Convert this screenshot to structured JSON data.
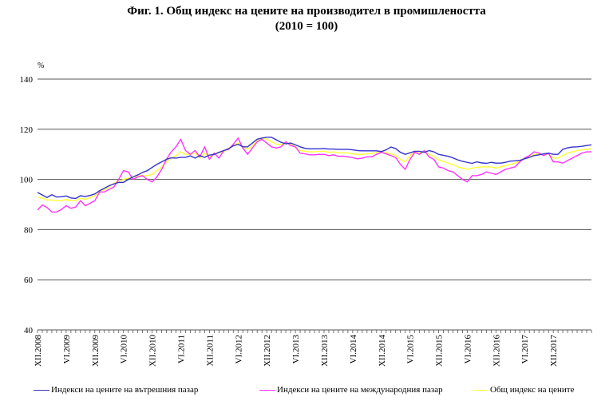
{
  "title_line1": "Фиг. 1. Общ индекс на цените на производител в промишлеността",
  "title_line2": "(2010 = 100)",
  "chart_data": {
    "type": "line",
    "title": "Фиг. 1. Общ индекс на цените на производител в промишлеността (2010 = 100)",
    "ylabel": "%",
    "ylim": [
      40,
      140
    ],
    "yticks": [
      40,
      60,
      80,
      100,
      120,
      140
    ],
    "grid": true,
    "legend_position": "bottom",
    "x_start": "XII.2008",
    "x_end": "XII.2017",
    "x_tick_labels": [
      "XII.2008",
      "VI.2009",
      "XII.2009",
      "VI.2010",
      "XII.2010",
      "VI.2011",
      "XII.2011",
      "VI.2012",
      "XII.2012",
      "VI.2013",
      "XII.2013",
      "VI.2014",
      "XII.2014",
      "VI.2015",
      "XII.2015",
      "VI.2016",
      "XII.2016",
      "VI.2017",
      "XII.2017"
    ],
    "series": [
      {
        "name": "Индекси на цените на вътрешния пазар",
        "color": "#3333cc",
        "values": [
          94.8,
          93.8,
          92.8,
          93.9,
          93.0,
          93.1,
          93.4,
          92.6,
          92.4,
          93.5,
          93.2,
          93.6,
          94.2,
          95.5,
          96.5,
          97.5,
          98.2,
          98.8,
          98.8,
          100.0,
          101.0,
          101.8,
          102.8,
          103.5,
          104.8,
          106.0,
          107.0,
          108.0,
          108.6,
          108.5,
          108.8,
          108.8,
          109.4,
          108.5,
          109.5,
          108.8,
          109.7,
          110.0,
          110.8,
          111.5,
          112.2,
          113.4,
          114.0,
          113.0,
          113.0,
          114.5,
          116.0,
          116.5,
          116.8,
          116.8,
          115.8,
          114.8,
          114.2,
          114.5,
          113.8,
          113.0,
          112.4,
          112.2,
          112.2,
          112.2,
          112.3,
          112.1,
          112.1,
          112.0,
          112.0,
          112.0,
          111.8,
          111.5,
          111.4,
          111.4,
          111.4,
          111.4,
          111.1,
          111.8,
          112.9,
          112.3,
          110.8,
          110.0,
          110.6,
          111.2,
          111.2,
          110.8,
          111.5,
          111.0,
          110.0,
          109.6,
          109.2,
          108.6,
          107.8,
          107.2,
          106.8,
          106.4,
          107.0,
          106.6,
          106.4,
          106.8,
          106.5,
          106.5,
          106.8,
          107.3,
          107.4,
          107.6,
          108.2,
          108.8,
          109.5,
          109.8,
          110.2,
          110.5,
          110.0,
          110.0,
          112.0,
          112.6,
          112.9,
          113.0,
          113.2,
          113.5,
          113.8
        ]
      },
      {
        "name": "Индекси на цените на международния пазар",
        "color": "#ff33ff",
        "values": [
          87.8,
          89.8,
          88.8,
          87.0,
          87.0,
          88.0,
          89.5,
          88.5,
          89.0,
          91.5,
          89.5,
          90.5,
          91.5,
          95.0,
          95.0,
          96.0,
          97.0,
          100.0,
          103.5,
          103.0,
          100.0,
          101.0,
          101.5,
          100.0,
          99.0,
          101.0,
          104.0,
          108.0,
          111.0,
          113.0,
          116.0,
          111.5,
          110.0,
          111.5,
          109.0,
          113.0,
          108.0,
          110.5,
          108.5,
          111.5,
          112.0,
          114.0,
          116.5,
          112.5,
          110.0,
          112.5,
          115.0,
          116.0,
          114.5,
          113.0,
          112.5,
          113.0,
          115.0,
          113.5,
          113.0,
          110.5,
          110.2,
          109.8,
          109.8,
          110.0,
          110.0,
          109.5,
          109.8,
          109.2,
          109.3,
          109.0,
          108.7,
          108.2,
          108.5,
          109.0,
          109.0,
          110.0,
          110.8,
          110.2,
          109.5,
          108.7,
          106.0,
          104.0,
          108.0,
          110.8,
          110.0,
          111.5,
          109.0,
          108.0,
          105.0,
          104.5,
          103.5,
          103.0,
          101.5,
          100.0,
          99.0,
          101.5,
          101.5,
          102.0,
          103.0,
          102.5,
          102.0,
          103.0,
          104.0,
          104.5,
          105.0,
          107.0,
          108.5,
          109.5,
          111.0,
          110.5,
          109.5,
          110.5,
          107.0,
          107.0,
          106.5,
          107.5,
          108.5,
          109.5,
          110.5,
          111.0,
          111.0
        ]
      },
      {
        "name": "Общ индекс на цените",
        "color": "#ffff33",
        "values": [
          93.0,
          92.5,
          91.8,
          91.8,
          91.5,
          91.5,
          92.0,
          91.5,
          91.5,
          92.5,
          92.0,
          92.8,
          93.5,
          95.0,
          96.0,
          97.0,
          98.5,
          99.2,
          100.0,
          100.5,
          100.8,
          101.5,
          101.5,
          101.5,
          102.0,
          103.5,
          105.0,
          107.0,
          108.5,
          109.5,
          111.0,
          110.0,
          110.0,
          110.5,
          108.5,
          110.5,
          109.0,
          110.0,
          110.5,
          111.0,
          112.5,
          113.5,
          114.5,
          113.0,
          112.0,
          113.5,
          115.5,
          116.5,
          116.0,
          115.0,
          114.0,
          114.0,
          114.5,
          114.0,
          113.0,
          111.5,
          111.2,
          111.0,
          111.0,
          111.2,
          111.2,
          110.8,
          111.0,
          110.6,
          110.6,
          110.5,
          110.2,
          110.0,
          110.0,
          110.2,
          110.3,
          110.8,
          111.3,
          110.7,
          110.2,
          109.5,
          108.0,
          107.0,
          109.5,
          111.0,
          110.5,
          111.2,
          110.0,
          109.2,
          107.8,
          107.2,
          106.5,
          105.8,
          105.0,
          104.5,
          104.0,
          104.5,
          104.8,
          105.0,
          105.0,
          105.0,
          104.5,
          105.0,
          105.5,
          106.0,
          106.5,
          107.5,
          108.5,
          109.0,
          110.0,
          110.0,
          109.8,
          110.2,
          108.5,
          108.5,
          109.5,
          110.5,
          111.0,
          111.5,
          111.8,
          112.0,
          112.2
        ]
      }
    ]
  }
}
